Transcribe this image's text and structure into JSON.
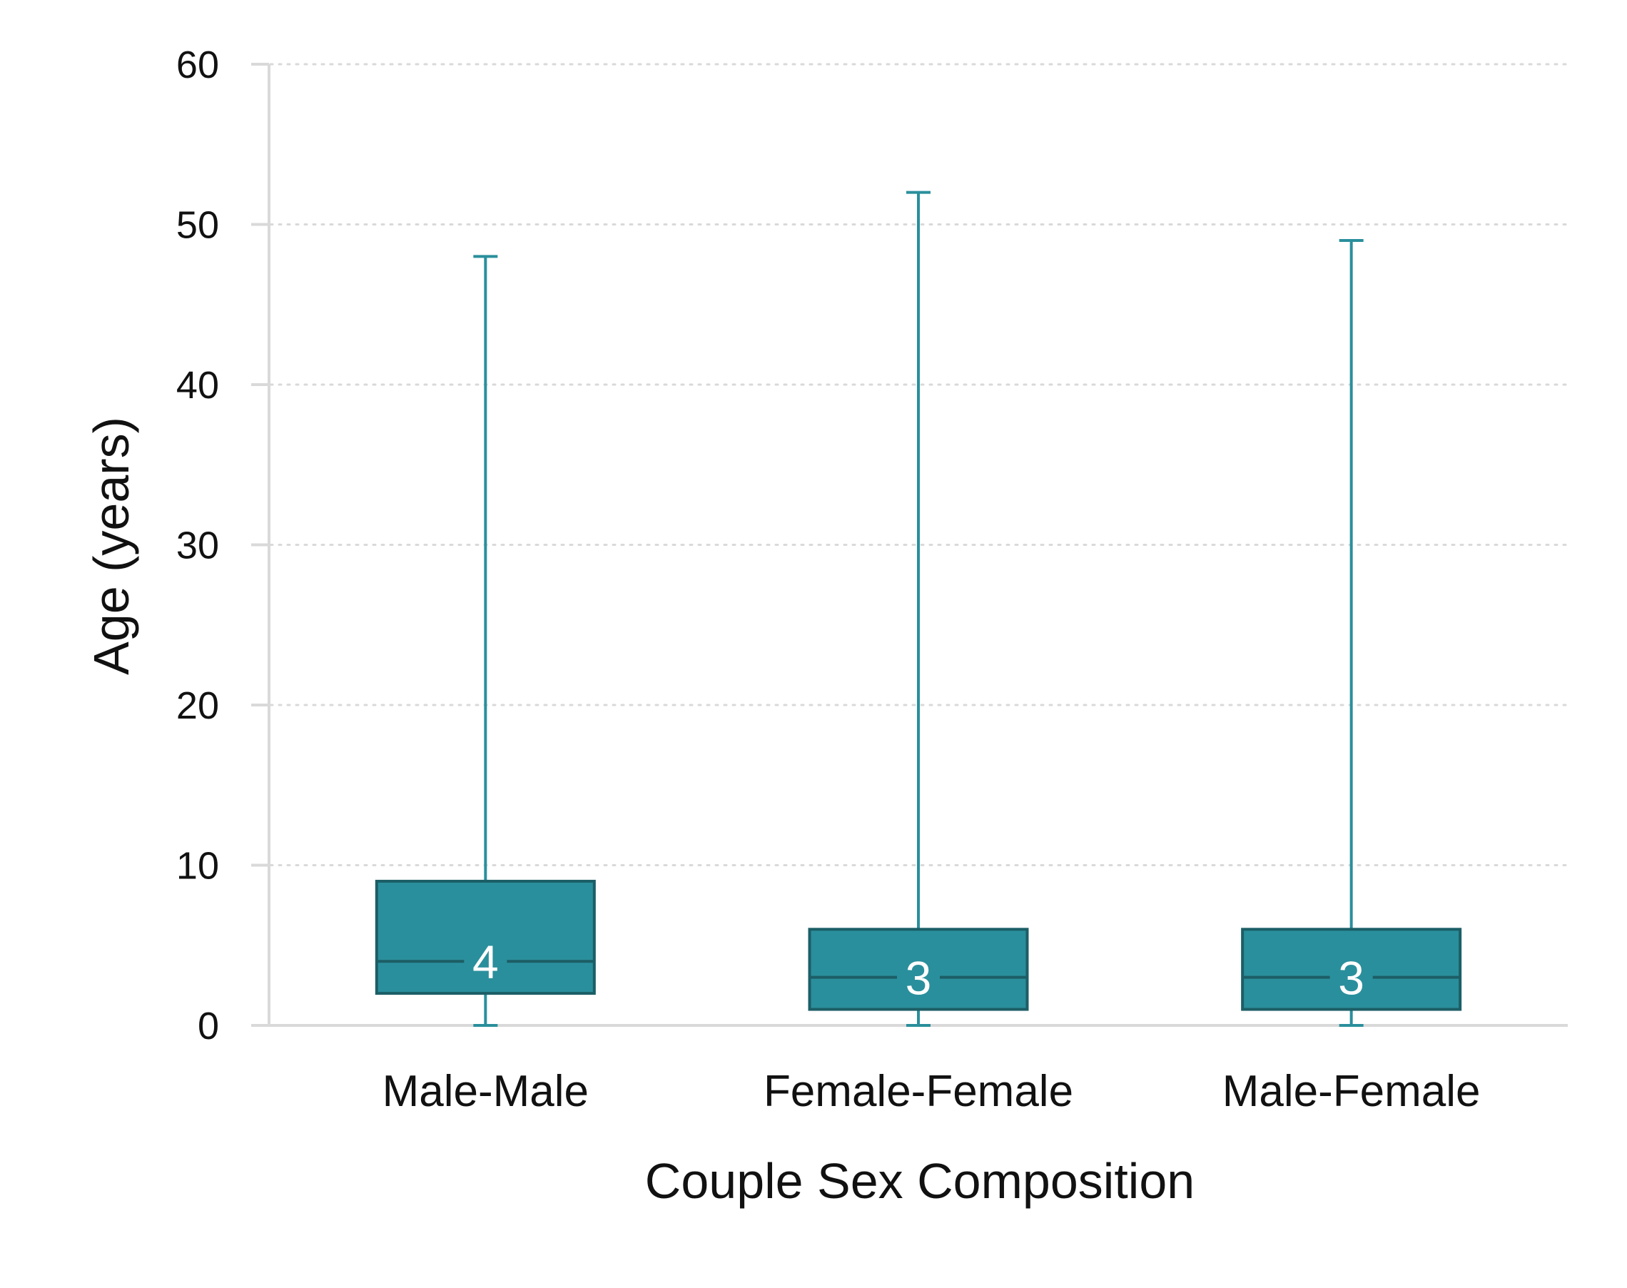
{
  "chart_data": {
    "type": "box",
    "xlabel": "Couple Sex Composition",
    "ylabel": "Age (years)",
    "ylim": [
      0,
      60
    ],
    "yticks": [
      0,
      10,
      20,
      30,
      40,
      50,
      60
    ],
    "grid": "horizontal dotted",
    "colors": {
      "box": "#2a8f9c",
      "box_edge": "#1c5e66",
      "whisker": "#2a8f9c",
      "axis": "#d9d9d9",
      "grid": "#d9d9d9"
    },
    "categories": [
      "Male-Male",
      "Female-Female",
      "Male-Female"
    ],
    "boxes": [
      {
        "category": "Male-Male",
        "min": 0,
        "q1": 2,
        "median": 4,
        "q3": 9,
        "max": 48,
        "median_label": "4"
      },
      {
        "category": "Female-Female",
        "min": 0,
        "q1": 1,
        "median": 3,
        "q3": 6,
        "max": 52,
        "median_label": "3"
      },
      {
        "category": "Male-Female",
        "min": 0,
        "q1": 1,
        "median": 3,
        "q3": 6,
        "max": 49,
        "median_label": "3"
      }
    ]
  }
}
